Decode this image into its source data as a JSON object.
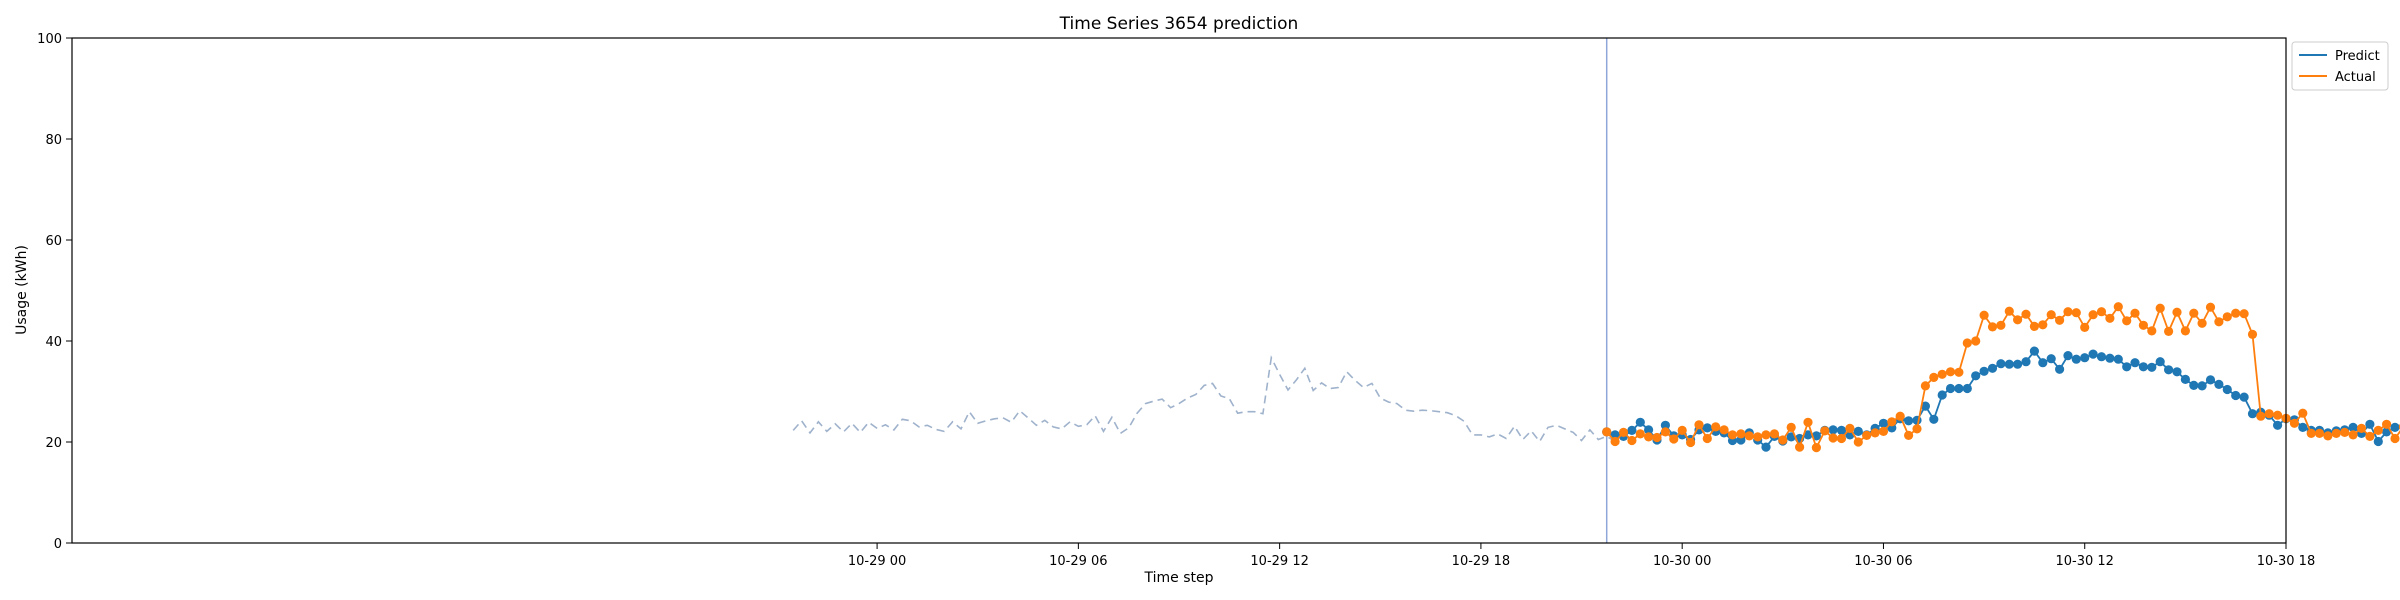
{
  "chart_data": {
    "type": "line",
    "title": "Time Series 3654 prediction",
    "xlabel": "Time step",
    "ylabel": "Usage (kWh)",
    "ylim": [
      0,
      100
    ],
    "yticks": [
      0,
      20,
      40,
      60,
      80,
      100
    ],
    "x_unit": "hours from 10-29 00:00",
    "xlim": [
      -24,
      42
    ],
    "xticks": [
      {
        "x": 0,
        "label": "10-29 00"
      },
      {
        "x": 6,
        "label": "10-29 06"
      },
      {
        "x": 12,
        "label": "10-29 12"
      },
      {
        "x": 18,
        "label": "10-29 18"
      },
      {
        "x": 24,
        "label": "10-30 00"
      },
      {
        "x": 30,
        "label": "10-30 06"
      },
      {
        "x": 36,
        "label": "10-30 12"
      },
      {
        "x": 42,
        "label": "10-30 18"
      }
    ],
    "x_start": -2.5,
    "x_step": 0.25,
    "forecast_start": 21.75,
    "legend_position": "upper-right-outside",
    "history": [
      22.3,
      24.2,
      21.8,
      24.0,
      22.1,
      23.6,
      22.0,
      23.7,
      21.9,
      23.9,
      22.7,
      23.4,
      22.4,
      24.5,
      24.2,
      23.0,
      23.3,
      22.5,
      22.1,
      24.0,
      22.6,
      26.0,
      23.7,
      24.2,
      24.6,
      24.8,
      23.9,
      26.2,
      24.8,
      23.3,
      24.3,
      23.0,
      22.6,
      24.0,
      23.1,
      23.4,
      25.2,
      22.1,
      24.9,
      21.7,
      22.8,
      25.7,
      27.6,
      28.1,
      28.5,
      26.8,
      27.6,
      28.7,
      29.4,
      31.2,
      31.6,
      29.1,
      28.6,
      25.7,
      26.0,
      26.0,
      25.6,
      36.7,
      33.4,
      30.3,
      32.3,
      34.6,
      30.2,
      31.7,
      30.6,
      30.8,
      33.9,
      32.2,
      30.8,
      31.6,
      28.7,
      27.9,
      27.6,
      26.3,
      26.1,
      26.3,
      26.2,
      26.0,
      25.8,
      25.2,
      24.1,
      21.4,
      21.4,
      21.0,
      21.6,
      20.7,
      23.1,
      20.5,
      22.2,
      20.1,
      22.9,
      23.3,
      22.6,
      21.9,
      20.3,
      22.4,
      20.5,
      21.1,
      20.1
    ],
    "series": [
      {
        "name": "Predict",
        "color": "#1f77b4",
        "values": [
          22.0,
          21.4,
          21.1,
          22.3,
          23.9,
          22.4,
          20.4,
          23.3,
          21.2,
          21.4,
          20.5,
          22.4,
          22.8,
          22.1,
          21.8,
          20.3,
          20.4,
          21.8,
          20.4,
          19.0,
          21.1,
          20.2,
          21.0,
          20.7,
          21.4,
          21.2,
          22.3,
          22.4,
          22.3,
          21.4,
          22.1,
          21.4,
          22.7,
          23.7,
          22.8,
          24.6,
          24.2,
          24.3,
          27.1,
          24.5,
          29.3,
          30.6,
          30.6,
          30.6,
          33.1,
          34.0,
          34.6,
          35.5,
          35.4,
          35.4,
          35.9,
          38.0,
          35.7,
          36.5,
          34.4,
          37.1,
          36.4,
          36.7,
          37.4,
          36.9,
          36.6,
          36.4,
          34.9,
          35.7,
          34.9,
          34.8,
          35.9,
          34.3,
          33.9,
          32.4,
          31.2,
          31.1,
          32.3,
          31.4,
          30.4,
          29.2,
          28.9,
          25.6,
          25.9,
          25.3,
          23.3,
          24.6,
          24.4,
          22.9,
          22.3,
          22.3,
          21.8,
          22.2,
          22.4,
          22.9,
          21.7,
          23.5,
          20.1,
          22.0,
          22.9
        ]
      },
      {
        "name": "Actual",
        "color": "#ff7f0e",
        "values": [
          22.0,
          20.1,
          21.9,
          20.3,
          21.6,
          21.0,
          20.9,
          22.0,
          20.6,
          22.3,
          19.9,
          23.4,
          20.7,
          23.0,
          22.4,
          21.4,
          21.6,
          21.2,
          21.0,
          21.4,
          21.6,
          20.4,
          22.9,
          19.0,
          23.9,
          18.9,
          22.2,
          20.8,
          20.7,
          22.7,
          20.0,
          21.3,
          21.8,
          22.1,
          24.0,
          25.1,
          21.3,
          22.6,
          31.1,
          32.8,
          33.4,
          33.9,
          33.8,
          39.6,
          40.0,
          45.1,
          42.8,
          43.1,
          45.9,
          44.2,
          45.3,
          42.9,
          43.2,
          45.2,
          44.1,
          45.8,
          45.6,
          42.7,
          45.2,
          45.8,
          44.5,
          46.8,
          44.0,
          45.5,
          43.1,
          42.0,
          46.5,
          41.9,
          45.7,
          42.0,
          45.5,
          43.5,
          46.7,
          43.8,
          44.8,
          45.5,
          45.4,
          41.3,
          25.1,
          25.6,
          25.3,
          24.7,
          23.7,
          25.7,
          21.7,
          21.7,
          21.2,
          21.7,
          21.9,
          21.4,
          22.7,
          21.1,
          22.3,
          23.5,
          20.7,
          23.0,
          33.6
        ]
      }
    ]
  }
}
